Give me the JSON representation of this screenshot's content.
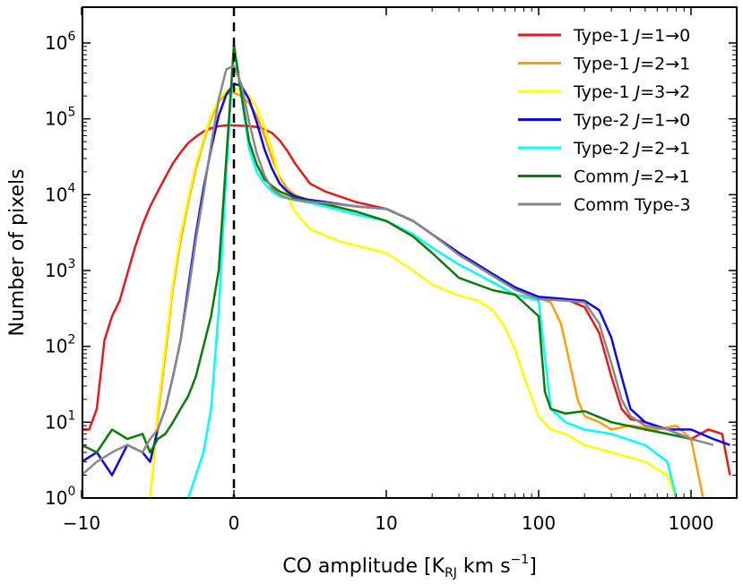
{
  "chart_data": {
    "type": "line",
    "title": "",
    "xlabel": "CO amplitude [K_RJ km s^-1]",
    "xlabel_parts": {
      "pre": "CO amplitude [K",
      "sub": "RJ",
      "mid": " km s",
      "sup": "−1",
      "post": "]"
    },
    "ylabel": "Number of pixels",
    "xscale": "symlog",
    "yscale": "log",
    "xlim": [
      -10,
      1800
    ],
    "ylim": [
      1,
      2000000
    ],
    "x_ticks": [
      {
        "value": -10,
        "label": "−10"
      },
      {
        "value": 0,
        "label": "0"
      },
      {
        "value": 10,
        "label": "10"
      },
      {
        "value": 100,
        "label": "100"
      },
      {
        "value": 1000,
        "label": "1000"
      }
    ],
    "y_ticks": [
      {
        "value": 1,
        "base": "10",
        "exp": "0"
      },
      {
        "value": 10,
        "base": "10",
        "exp": "1"
      },
      {
        "value": 100,
        "base": "10",
        "exp": "2"
      },
      {
        "value": 1000,
        "base": "10",
        "exp": "3"
      },
      {
        "value": 10000,
        "base": "10",
        "exp": "4"
      },
      {
        "value": 100000,
        "base": "10",
        "exp": "5"
      },
      {
        "value": 1000000,
        "base": "10",
        "exp": "6"
      }
    ],
    "reference_line": {
      "x": 0,
      "style": "dashed",
      "color": "#000000"
    },
    "legend_position": "top-right",
    "series": [
      {
        "name": "Type-1 J=1→0",
        "legend": {
          "pre": "Type-1 ",
          "j": "J",
          "post": "=1→0"
        },
        "color": "#e41a1c",
        "x": [
          -10,
          -9.5,
          -9,
          -8.5,
          -8,
          -7.5,
          -7,
          -6.5,
          -6,
          -5.5,
          -5,
          -4.5,
          -4,
          -3.5,
          -3,
          -2.5,
          -2,
          -1.5,
          -1,
          -0.5,
          0,
          0.5,
          1,
          1.5,
          2,
          2.5,
          3,
          3.5,
          4,
          5,
          6,
          8,
          10,
          15,
          20,
          30,
          50,
          70,
          100,
          150,
          200,
          250,
          300,
          350,
          400,
          500,
          700,
          1000,
          1300,
          1600,
          1800
        ],
        "y": [
          8,
          8,
          15,
          120,
          250,
          400,
          900,
          2000,
          4000,
          7000,
          11000,
          17000,
          26000,
          36000,
          48000,
          58000,
          68000,
          75000,
          80000,
          82000,
          82000,
          81000,
          80000,
          78000,
          73000,
          65000,
          52000,
          38000,
          26000,
          14000,
          11000,
          8000,
          6500,
          4500,
          3000,
          1700,
          900,
          600,
          430,
          420,
          330,
          150,
          40,
          15,
          11,
          10,
          8,
          6,
          8,
          7,
          2
        ]
      },
      {
        "name": "Type-1 J=2→1",
        "legend": {
          "pre": "Type-1 ",
          "j": "J",
          "post": "=2→1"
        },
        "color": "#ff9f10",
        "x": [
          -5.5,
          -5,
          -4.5,
          -4,
          -3.5,
          -3,
          -2.5,
          -2,
          -1.5,
          -1,
          -0.5,
          0,
          0.5,
          1,
          1.5,
          2,
          2.5,
          3,
          3.5,
          4,
          5,
          6,
          8,
          10,
          15,
          20,
          30,
          50,
          70,
          100,
          120,
          140,
          160,
          180,
          200,
          250,
          300,
          400,
          600,
          800,
          1000,
          1200
        ],
        "y": [
          1,
          12,
          80,
          600,
          2500,
          8000,
          22000,
          50000,
          100000,
          170000,
          210000,
          220000,
          200000,
          160000,
          110000,
          60000,
          30000,
          17000,
          12000,
          10000,
          8000,
          7000,
          5500,
          4500,
          3000,
          2000,
          1200,
          700,
          480,
          430,
          380,
          200,
          60,
          20,
          12,
          10,
          8,
          9,
          8,
          9,
          6,
          1
        ]
      },
      {
        "name": "Type-1 J=3→2",
        "legend": {
          "pre": "Type-1 ",
          "j": "J",
          "post": "=3→2"
        },
        "color": "#ffff00",
        "x": [
          -5.5,
          -5,
          -4.5,
          -4,
          -3.5,
          -3,
          -2.5,
          -2,
          -1.5,
          -1,
          -0.5,
          0,
          0.5,
          1,
          1.5,
          2,
          2.5,
          3,
          4,
          5,
          7,
          10,
          15,
          20,
          30,
          40,
          50,
          60,
          70,
          80,
          100,
          120,
          150,
          200,
          300,
          500,
          700,
          800
        ],
        "y": [
          1,
          15,
          100,
          700,
          3000,
          9000,
          25000,
          55000,
          110000,
          180000,
          230000,
          250000,
          240000,
          200000,
          140000,
          80000,
          40000,
          15000,
          6000,
          3500,
          2400,
          1700,
          1000,
          650,
          470,
          400,
          300,
          180,
          90,
          40,
          12,
          8,
          7,
          5,
          4,
          3,
          2,
          1
        ]
      },
      {
        "name": "Type-2 J=1→0",
        "legend": {
          "pre": "Type-2 ",
          "j": "J",
          "post": "=1→0"
        },
        "color": "#0a0ae6",
        "x": [
          -10,
          -9,
          -8,
          -7,
          -6,
          -5.5,
          -5,
          -4.5,
          -4,
          -3.5,
          -3,
          -2.5,
          -2,
          -1.5,
          -1,
          -0.5,
          0,
          0.5,
          1,
          1.5,
          2,
          2.5,
          3,
          3.5,
          4,
          5,
          6,
          8,
          10,
          15,
          20,
          30,
          50,
          70,
          100,
          150,
          200,
          250,
          300,
          350,
          400,
          500,
          700,
          1000,
          1400,
          1800
        ],
        "y": [
          3,
          4,
          2,
          5,
          4,
          3,
          8,
          15,
          40,
          120,
          600,
          3000,
          12000,
          40000,
          110000,
          210000,
          290000,
          270000,
          180000,
          90000,
          40000,
          22000,
          14000,
          11000,
          9500,
          8500,
          8000,
          7000,
          6500,
          4500,
          3000,
          1700,
          900,
          600,
          450,
          420,
          400,
          300,
          130,
          40,
          15,
          10,
          8,
          8,
          6,
          5
        ]
      },
      {
        "name": "Type-2 J=2→1",
        "legend": {
          "pre": "Type-2 ",
          "j": "J",
          "post": "=2→1"
        },
        "color": "#00ffff",
        "x": [
          -3,
          -2.5,
          -2,
          -1.5,
          -1,
          -0.5,
          0,
          0.5,
          1,
          1.5,
          2,
          2.5,
          3,
          3.5,
          4,
          5,
          6,
          8,
          10,
          15,
          20,
          30,
          50,
          70,
          100,
          120,
          150,
          200,
          300,
          500,
          700,
          800
        ],
        "y": [
          1,
          2,
          4,
          15,
          300,
          20000,
          900000,
          200000,
          40000,
          20000,
          14000,
          11000,
          9500,
          9000,
          8500,
          7800,
          7000,
          5500,
          4500,
          3000,
          2000,
          1200,
          700,
          480,
          400,
          15,
          10,
          8,
          7,
          5,
          3,
          1
        ]
      },
      {
        "name": "Comm J=2→1",
        "legend": {
          "pre": "Comm ",
          "j": "J",
          "post": "=2→1"
        },
        "color": "#0d7a0d",
        "x": [
          -10,
          -9,
          -8,
          -7,
          -6,
          -5.5,
          -5,
          -4.5,
          -4,
          -3.5,
          -3,
          -2.5,
          -2,
          -1.5,
          -1,
          -0.5,
          0,
          0.5,
          1,
          1.5,
          2,
          2.5,
          3,
          3.5,
          4,
          5,
          6,
          8,
          10,
          15,
          20,
          30,
          50,
          70,
          100,
          110,
          120,
          150,
          200,
          300,
          500,
          700,
          1000
        ],
        "y": [
          5,
          4,
          8,
          6,
          7,
          4,
          6,
          7,
          10,
          15,
          22,
          40,
          100,
          250,
          1000,
          30000,
          950000,
          200000,
          50000,
          25000,
          16000,
          13000,
          11000,
          10000,
          9000,
          8200,
          7500,
          6000,
          4500,
          2800,
          1700,
          800,
          550,
          480,
          250,
          25,
          15,
          13,
          14,
          10,
          8,
          7,
          6
        ]
      },
      {
        "name": "Comm Type-3",
        "legend": {
          "pre": "Comm Type-3",
          "j": "",
          "post": ""
        },
        "color": "#888888",
        "x": [
          -10,
          -9,
          -8,
          -7,
          -6,
          -5.5,
          -5,
          -4.5,
          -4,
          -3.5,
          -3,
          -2.5,
          -2,
          -1.5,
          -1,
          -0.5,
          0,
          0.5,
          1,
          1.5,
          2,
          2.5,
          3,
          3.5,
          4,
          5,
          6,
          8,
          10,
          15,
          20,
          30,
          50,
          70,
          100,
          150,
          200,
          250,
          300,
          350,
          400,
          500,
          700,
          1000,
          1400
        ],
        "y": [
          2,
          3,
          4,
          5,
          4,
          6,
          8,
          15,
          40,
          120,
          500,
          2500,
          10000,
          45000,
          180000,
          450000,
          500000,
          280000,
          90000,
          35000,
          18000,
          12000,
          10000,
          9000,
          8500,
          8000,
          7800,
          7000,
          6500,
          4500,
          3000,
          1600,
          850,
          560,
          420,
          400,
          380,
          200,
          60,
          20,
          12,
          9,
          8,
          6,
          5
        ]
      }
    ]
  }
}
